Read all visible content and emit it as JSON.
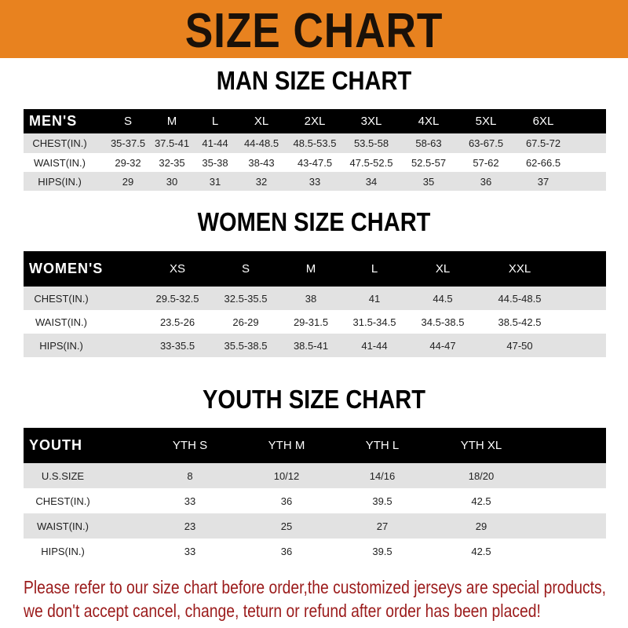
{
  "banner": {
    "title": "SIZE CHART",
    "color": "#e8821f"
  },
  "men": {
    "title": "MAN SIZE CHART",
    "header": [
      "MEN'S",
      "S",
      "M",
      "L",
      "XL",
      "2XL",
      "3XL",
      "4XL",
      "5XL",
      "6XL"
    ],
    "rows": [
      [
        "CHEST(IN.)",
        "35-37.5",
        "37.5-41",
        "41-44",
        "44-48.5",
        "48.5-53.5",
        "53.5-58",
        "58-63",
        "63-67.5",
        "67.5-72"
      ],
      [
        "WAIST(IN.)",
        "29-32",
        "32-35",
        "35-38",
        "38-43",
        "43-47.5",
        "47.5-52.5",
        "52.5-57",
        "57-62",
        "62-66.5"
      ],
      [
        "HIPS(IN.)",
        "29",
        "30",
        "31",
        "32",
        "33",
        "34",
        "35",
        "36",
        "37"
      ]
    ]
  },
  "women": {
    "title": "WOMEN SIZE CHART",
    "header": [
      "WOMEN'S",
      "XS",
      "S",
      "M",
      "L",
      "XL",
      "XXL"
    ],
    "rows": [
      [
        "CHEST(IN.)",
        "29.5-32.5",
        "32.5-35.5",
        "38",
        "41",
        "44.5",
        "44.5-48.5"
      ],
      [
        "WAIST(IN.)",
        "23.5-26",
        "26-29",
        "29-31.5",
        "31.5-34.5",
        "34.5-38.5",
        "38.5-42.5"
      ],
      [
        "HIPS(IN.)",
        "33-35.5",
        "35.5-38.5",
        "38.5-41",
        "41-44",
        "44-47",
        "47-50"
      ]
    ]
  },
  "youth": {
    "title": "YOUTH SIZE CHART",
    "header": [
      "YOUTH",
      "YTH S",
      "YTH M",
      "YTH L",
      "YTH XL"
    ],
    "rows": [
      [
        "U.S.SIZE",
        "8",
        "10/12",
        "14/16",
        "18/20"
      ],
      [
        "CHEST(IN.)",
        "33",
        "36",
        "39.5",
        "42.5"
      ],
      [
        "WAIST(IN.)",
        "23",
        "25",
        "27",
        "29"
      ],
      [
        "HIPS(IN.)",
        "33",
        "36",
        "39.5",
        "42.5"
      ]
    ]
  },
  "notice": {
    "line1": "Please refer to our size chart before order,the customized jerseys are special products,",
    "line2": "we don't accept cancel, change, teturn or refund after order has been placed!",
    "color": "#9b1b1b"
  }
}
